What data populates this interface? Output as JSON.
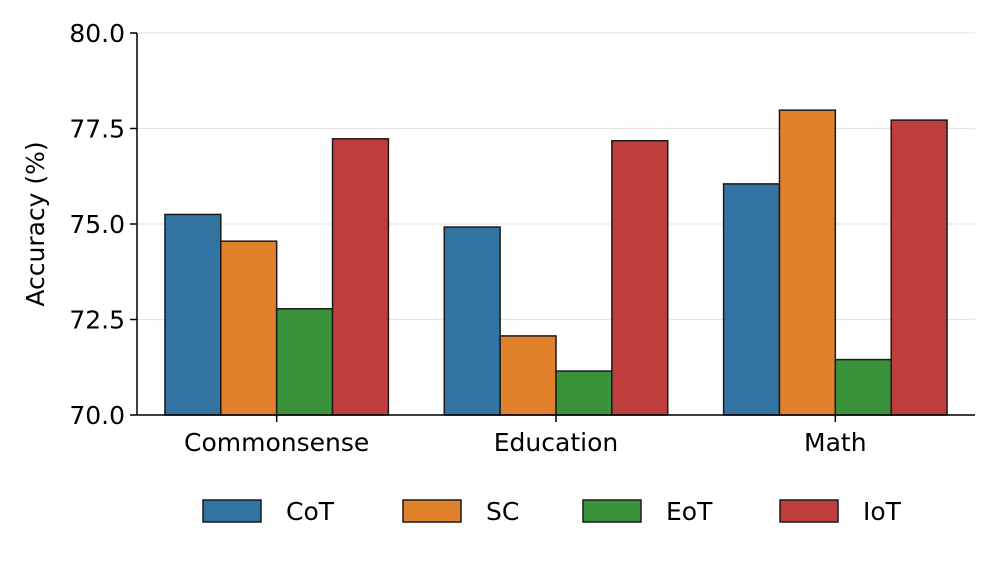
{
  "chart_data": {
    "type": "bar",
    "title": "",
    "xlabel": "",
    "ylabel": "Accuracy (%)",
    "ylim": [
      70.0,
      80.0
    ],
    "yticks": [
      "70.0",
      "72.5",
      "75.0",
      "77.5",
      "80.0"
    ],
    "ytick_values": [
      70.0,
      72.5,
      75.0,
      77.5,
      80.0
    ],
    "grid": "horizontal",
    "legend_position": "bottom",
    "categories": [
      "Commonsense",
      "Education",
      "Math"
    ],
    "series": [
      {
        "name": "CoT",
        "color": "#3274a1",
        "values": [
          75.25,
          74.92,
          76.05
        ]
      },
      {
        "name": "SC",
        "color": "#e1812c",
        "values": [
          74.55,
          72.07,
          77.98
        ]
      },
      {
        "name": "EoT",
        "color": "#3a923a",
        "values": [
          72.78,
          71.15,
          71.45
        ]
      },
      {
        "name": "IoT",
        "color": "#c03d3e",
        "values": [
          77.23,
          77.18,
          77.72
        ]
      }
    ]
  }
}
